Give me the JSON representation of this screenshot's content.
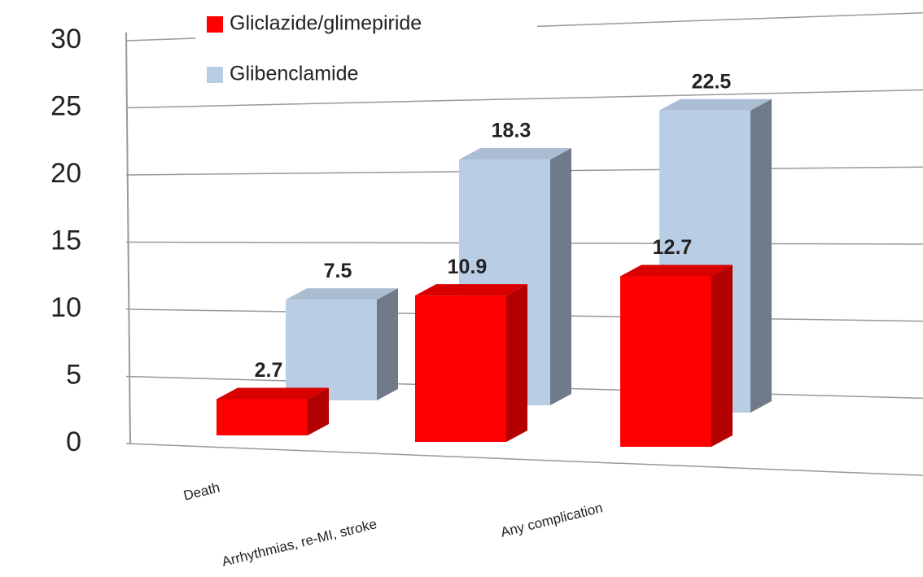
{
  "chart_data": {
    "type": "bar3d",
    "categories": [
      "Death",
      "Arrhythmias, re-MI, stroke",
      "Any complication"
    ],
    "series": [
      {
        "name": "Gliclazide/glimepiride",
        "color": "#ff0000",
        "values": [
          2.7,
          10.9,
          12.7
        ]
      },
      {
        "name": "Glibenclamide",
        "color": "#b9cde5",
        "values": [
          7.5,
          18.3,
          22.5
        ]
      }
    ],
    "ylim": [
      0,
      30
    ],
    "yticks": [
      0,
      5,
      10,
      15,
      20,
      25,
      30
    ],
    "grid": true,
    "legend": "top"
  }
}
